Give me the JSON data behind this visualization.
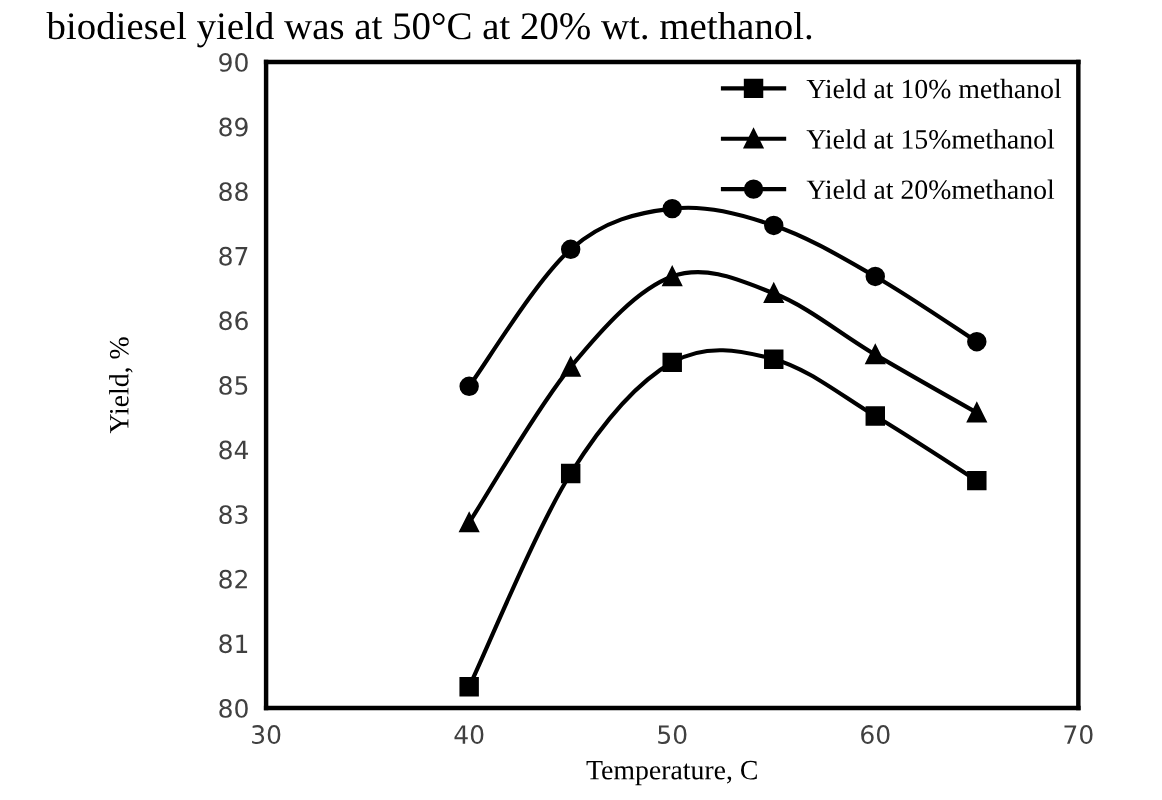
{
  "chart_data": {
    "type": "line",
    "xlabel": "Temperature, C",
    "ylabel": "Yield, %",
    "annotations": [
      "biodiesel yield was at 50°C at 20% wt. methanol."
    ],
    "x": [
      40,
      45,
      50,
      55,
      60,
      65
    ],
    "series": [
      {
        "name": "Yield at 10% methanol",
        "color": "#000000",
        "marker": "square",
        "values": [
          80.33,
          83.63,
          85.35,
          85.4,
          84.52,
          83.52
        ]
      },
      {
        "name": "Yield at 15%methanol",
        "color": "#000000",
        "marker": "triangle",
        "values": [
          82.87,
          85.28,
          86.68,
          86.42,
          85.47,
          84.57
        ]
      },
      {
        "name": "Yield at 20%methanol",
        "color": "#000000",
        "marker": "circle",
        "values": [
          84.98,
          87.1,
          87.73,
          87.47,
          86.68,
          85.67
        ]
      }
    ],
    "xlim": [
      30,
      70
    ],
    "xticks": [
      30,
      40,
      50,
      60,
      70
    ],
    "ylim": [
      80,
      90
    ],
    "yticks": [
      80,
      81,
      82,
      83,
      84,
      85,
      86,
      87,
      88,
      89,
      90
    ],
    "grid": false,
    "legend": "top right",
    "line_style": "solid"
  }
}
